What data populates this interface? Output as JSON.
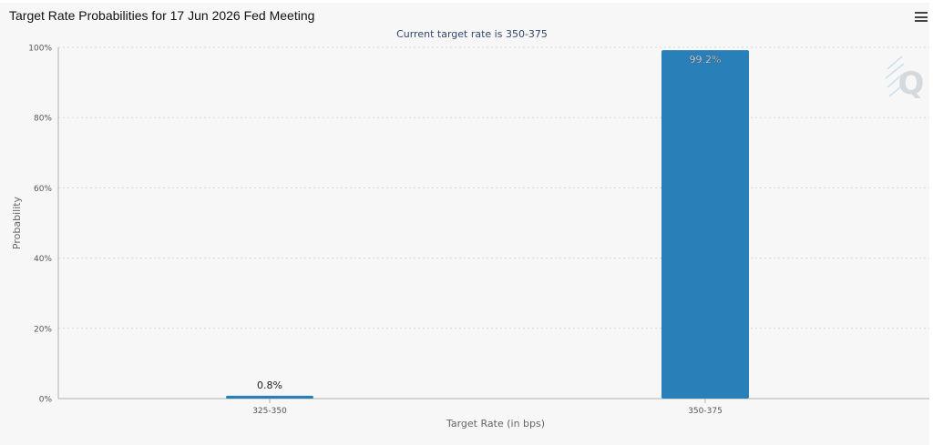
{
  "title": "Target Rate Probabilities for 17 Jun 2026 Fed Meeting",
  "menu_icon": "hamburger-menu-icon",
  "watermark_icon": "q-logo-icon",
  "colors": {
    "bar": "#2980b9",
    "grid": "#d8d8d8",
    "axis": "#b0b0b0",
    "text": "#555555",
    "subtitle": "#33476b"
  },
  "chart_data": {
    "type": "bar",
    "title": "Target Rate Probabilities for 17 Jun 2026 Fed Meeting",
    "subtitle": "Current target rate is 350-375",
    "xlabel": "Target Rate (in bps)",
    "ylabel": "Probability",
    "categories": [
      "325-350",
      "350-375"
    ],
    "values": [
      0.8,
      99.2
    ],
    "value_labels": [
      "0.8%",
      "99.2%"
    ],
    "ylim": [
      0,
      100
    ],
    "yticks": [
      0,
      20,
      40,
      60,
      80,
      100
    ],
    "ytick_labels": [
      "0%",
      "20%",
      "40%",
      "60%",
      "80%",
      "100%"
    ],
    "grid": true,
    "legend": "none"
  }
}
